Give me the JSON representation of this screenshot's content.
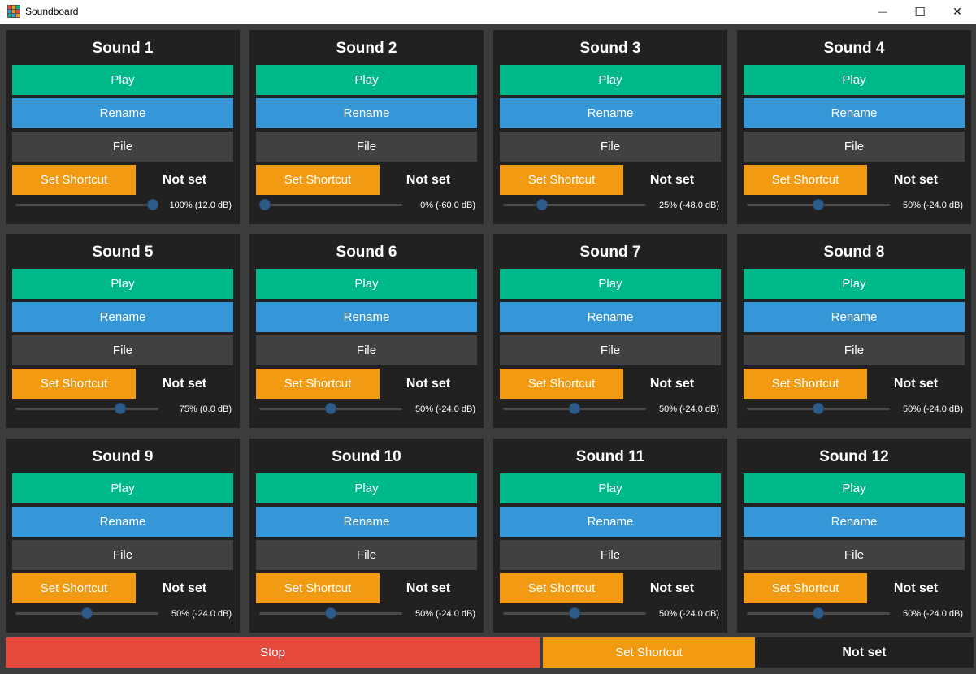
{
  "window": {
    "title": "Soundboard",
    "minimize_glyph": "—",
    "maximize_glyph": "☐",
    "close_glyph": "✕",
    "icon": "soundboard-grid-icon"
  },
  "colors": {
    "play": "#00b98b",
    "rename": "#3596d8",
    "file": "#414141",
    "shortcut": "#f29b12",
    "stop": "#e64a3d",
    "card_bg": "#212121",
    "window_bg": "#3c3c3c"
  },
  "sounds": [
    {
      "title": "Sound 1",
      "play": "Play",
      "rename": "Rename",
      "file": "File",
      "shortcut_btn": "Set Shortcut",
      "shortcut": "Not set",
      "volume_percent": 100,
      "volume_label": "100% (12.0 dB)"
    },
    {
      "title": "Sound 2",
      "play": "Play",
      "rename": "Rename",
      "file": "File",
      "shortcut_btn": "Set Shortcut",
      "shortcut": "Not set",
      "volume_percent": 0,
      "volume_label": "0% (-60.0 dB)"
    },
    {
      "title": "Sound 3",
      "play": "Play",
      "rename": "Rename",
      "file": "File",
      "shortcut_btn": "Set Shortcut",
      "shortcut": "Not set",
      "volume_percent": 25,
      "volume_label": "25% (-48.0 dB)"
    },
    {
      "title": "Sound 4",
      "play": "Play",
      "rename": "Rename",
      "file": "File",
      "shortcut_btn": "Set Shortcut",
      "shortcut": "Not set",
      "volume_percent": 50,
      "volume_label": "50% (-24.0 dB)"
    },
    {
      "title": "Sound 5",
      "play": "Play",
      "rename": "Rename",
      "file": "File",
      "shortcut_btn": "Set Shortcut",
      "shortcut": "Not set",
      "volume_percent": 75,
      "volume_label": "75% (0.0 dB)"
    },
    {
      "title": "Sound 6",
      "play": "Play",
      "rename": "Rename",
      "file": "File",
      "shortcut_btn": "Set Shortcut",
      "shortcut": "Not set",
      "volume_percent": 50,
      "volume_label": "50% (-24.0 dB)"
    },
    {
      "title": "Sound 7",
      "play": "Play",
      "rename": "Rename",
      "file": "File",
      "shortcut_btn": "Set Shortcut",
      "shortcut": "Not set",
      "volume_percent": 50,
      "volume_label": "50% (-24.0 dB)"
    },
    {
      "title": "Sound 8",
      "play": "Play",
      "rename": "Rename",
      "file": "File",
      "shortcut_btn": "Set Shortcut",
      "shortcut": "Not set",
      "volume_percent": 50,
      "volume_label": "50% (-24.0 dB)"
    },
    {
      "title": "Sound 9",
      "play": "Play",
      "rename": "Rename",
      "file": "File",
      "shortcut_btn": "Set Shortcut",
      "shortcut": "Not set",
      "volume_percent": 50,
      "volume_label": "50% (-24.0 dB)"
    },
    {
      "title": "Sound 10",
      "play": "Play",
      "rename": "Rename",
      "file": "File",
      "shortcut_btn": "Set Shortcut",
      "shortcut": "Not set",
      "volume_percent": 50,
      "volume_label": "50% (-24.0 dB)"
    },
    {
      "title": "Sound 11",
      "play": "Play",
      "rename": "Rename",
      "file": "File",
      "shortcut_btn": "Set Shortcut",
      "shortcut": "Not set",
      "volume_percent": 50,
      "volume_label": "50% (-24.0 dB)"
    },
    {
      "title": "Sound 12",
      "play": "Play",
      "rename": "Rename",
      "file": "File",
      "shortcut_btn": "Set Shortcut",
      "shortcut": "Not set",
      "volume_percent": 50,
      "volume_label": "50% (-24.0 dB)"
    }
  ],
  "footer": {
    "stop": "Stop",
    "shortcut_btn": "Set Shortcut",
    "shortcut": "Not set"
  }
}
